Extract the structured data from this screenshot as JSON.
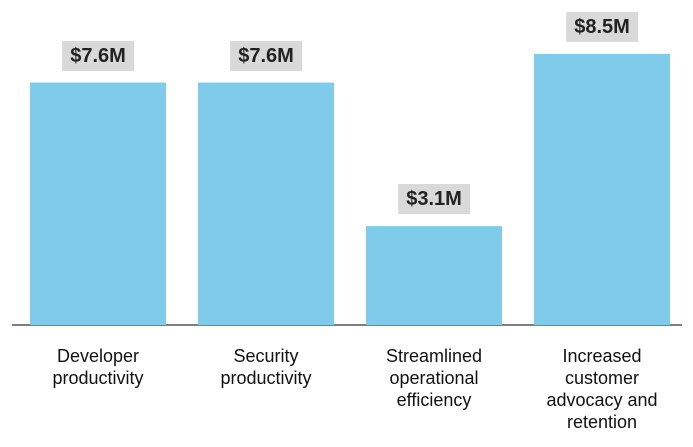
{
  "chart_data": {
    "type": "bar",
    "categories": [
      "Developer productivity",
      "Security productivity",
      "Streamlined operational efficiency",
      "Increased customer advocacy and retention"
    ],
    "values": [
      7.6,
      7.6,
      3.1,
      8.5
    ],
    "value_labels": [
      "$7.6M",
      "$7.6M",
      "$3.1M",
      "$8.5M"
    ],
    "color": "#7fcbea"
  }
}
